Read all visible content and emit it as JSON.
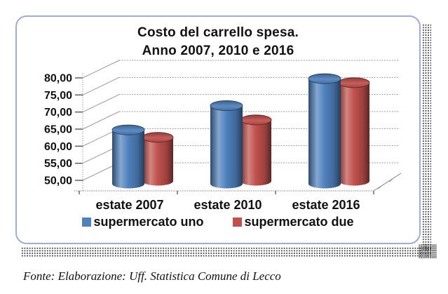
{
  "card": {
    "border_color": "#9FABD9"
  },
  "chart_data": {
    "type": "bar",
    "subtype": "3d-cylinder",
    "title": "Costo del carrello spesa.",
    "subtitle": "Anno 2007, 2010 e 2016",
    "categories": [
      "estate 2007",
      "estate 2010",
      "estate 2016"
    ],
    "series": [
      {
        "name": "supermercato uno",
        "color": "#4F81BD",
        "values": [
          65.8,
          72.9,
          80.8
        ]
      },
      {
        "name": "supermercato due",
        "color": "#C0504D",
        "values": [
          62.8,
          67.9,
          78.8
        ]
      }
    ],
    "ylim": [
      50,
      80
    ],
    "ytick_step": 5,
    "ytick_labels": [
      "50,00",
      "55,00",
      "60,00",
      "65,00",
      "70,00",
      "75,00",
      "80,00"
    ],
    "grid": true,
    "legend_position": "bottom"
  },
  "footer": {
    "source_note": "Fonte: Elaborazione: Uff. Statistica Comune di Lecco"
  }
}
